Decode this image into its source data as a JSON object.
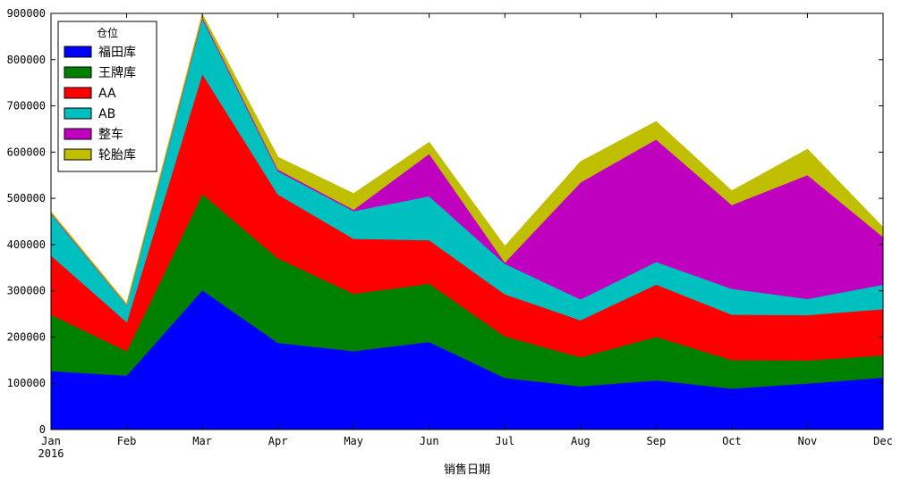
{
  "chart_data": {
    "type": "area",
    "stacked": true,
    "categories": [
      "Jan",
      "Feb",
      "Mar",
      "Apr",
      "May",
      "Jun",
      "Jul",
      "Aug",
      "Sep",
      "Oct",
      "Nov",
      "Dec"
    ],
    "year_label": "2016",
    "xlabel": "销售日期",
    "ylabel": "",
    "ylim": [
      0,
      900000
    ],
    "yticks": [
      0,
      100000,
      200000,
      300000,
      400000,
      500000,
      600000,
      700000,
      800000,
      900000
    ],
    "legend": {
      "title": "仓位",
      "placement": "top-left"
    },
    "grid": false,
    "series": [
      {
        "name": "福田库",
        "color": "#0000ff",
        "values": [
          127000,
          117000,
          302000,
          188000,
          170000,
          190000,
          112000,
          94000,
          107000,
          89000,
          100000,
          113000
        ]
      },
      {
        "name": "王牌库",
        "color": "#008000",
        "values": [
          122000,
          53000,
          208000,
          183000,
          124000,
          126000,
          90000,
          63000,
          94000,
          62000,
          50000,
          48000
        ]
      },
      {
        "name": "AA",
        "color": "#ff0000",
        "values": [
          128000,
          63000,
          260000,
          138000,
          119000,
          94000,
          91000,
          80000,
          113000,
          98000,
          98000,
          100000
        ]
      },
      {
        "name": "AB",
        "color": "#00bfbf",
        "values": [
          90000,
          36000,
          120000,
          50000,
          60000,
          95000,
          66000,
          45000,
          49000,
          56000,
          35000,
          53000
        ]
      },
      {
        "name": "整车",
        "color": "#bf00bf",
        "values": [
          2000,
          1000,
          4000,
          4000,
          3000,
          92000,
          3000,
          253000,
          265000,
          181000,
          268000,
          103000
        ]
      },
      {
        "name": "轮胎库",
        "color": "#bfbf00",
        "values": [
          2000,
          2000,
          4000,
          26000,
          34000,
          24000,
          34000,
          44000,
          38000,
          30000,
          55000,
          20000
        ]
      }
    ]
  }
}
